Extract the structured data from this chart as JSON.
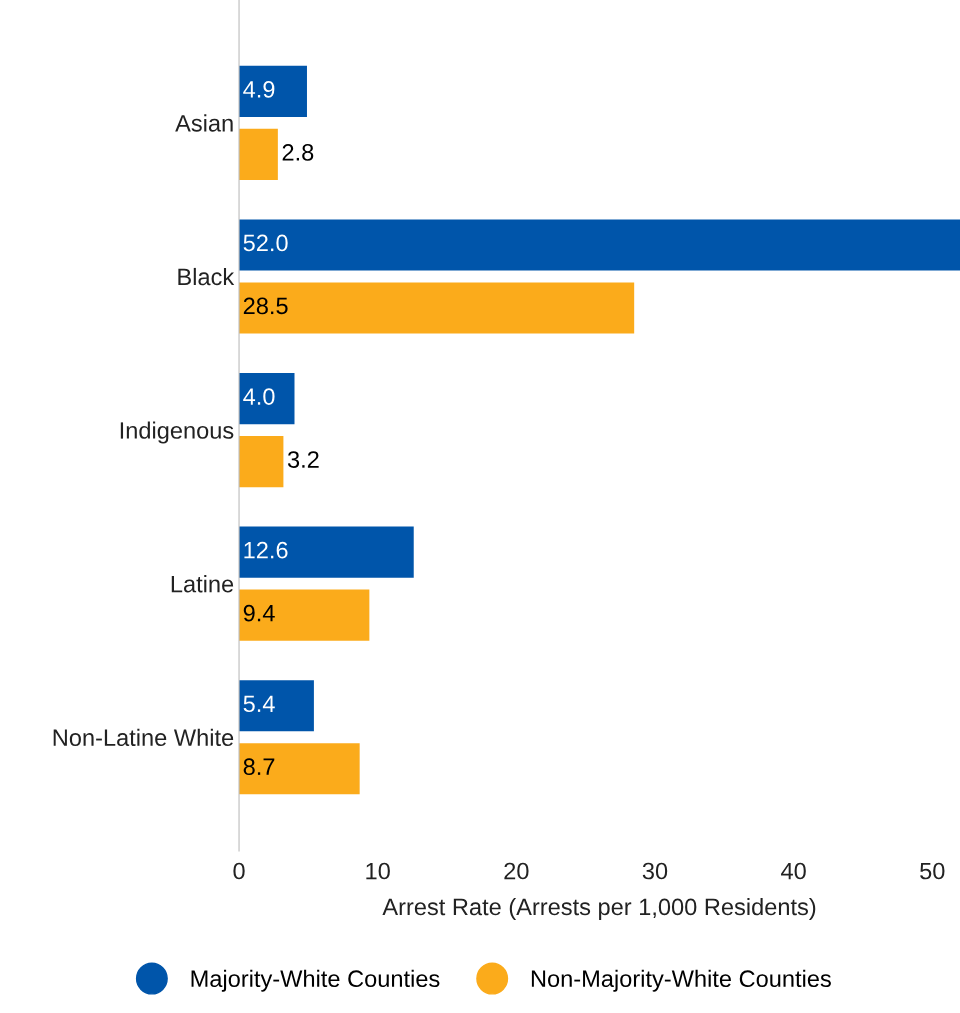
{
  "chart_data": {
    "type": "bar",
    "orientation": "horizontal",
    "categories": [
      "Asian",
      "Black",
      "Indigenous",
      "Latine",
      "Non-Latine White"
    ],
    "series": [
      {
        "name": "Majority-White Counties",
        "color": "#0055aa",
        "values": [
          4.9,
          52,
          4,
          12.6,
          5.4
        ],
        "value_labels": [
          "4.9",
          "52.0",
          "4.0",
          "12.6",
          "5.4"
        ]
      },
      {
        "name": "Non-Majority-White Counties",
        "color": "#fbab1b",
        "values": [
          2.8,
          28.5,
          3.2,
          9.4,
          8.7
        ],
        "value_labels": [
          "2.8",
          "28.5",
          "3.2",
          "9.4",
          "8.7"
        ]
      }
    ],
    "xlim": [
      0,
      52
    ],
    "xticks": [
      0,
      10,
      20,
      30,
      40,
      50
    ],
    "xlabel": "Arrest Rate (Arrests per 1,000 Residents)",
    "legend": "bottom",
    "grid": false
  }
}
